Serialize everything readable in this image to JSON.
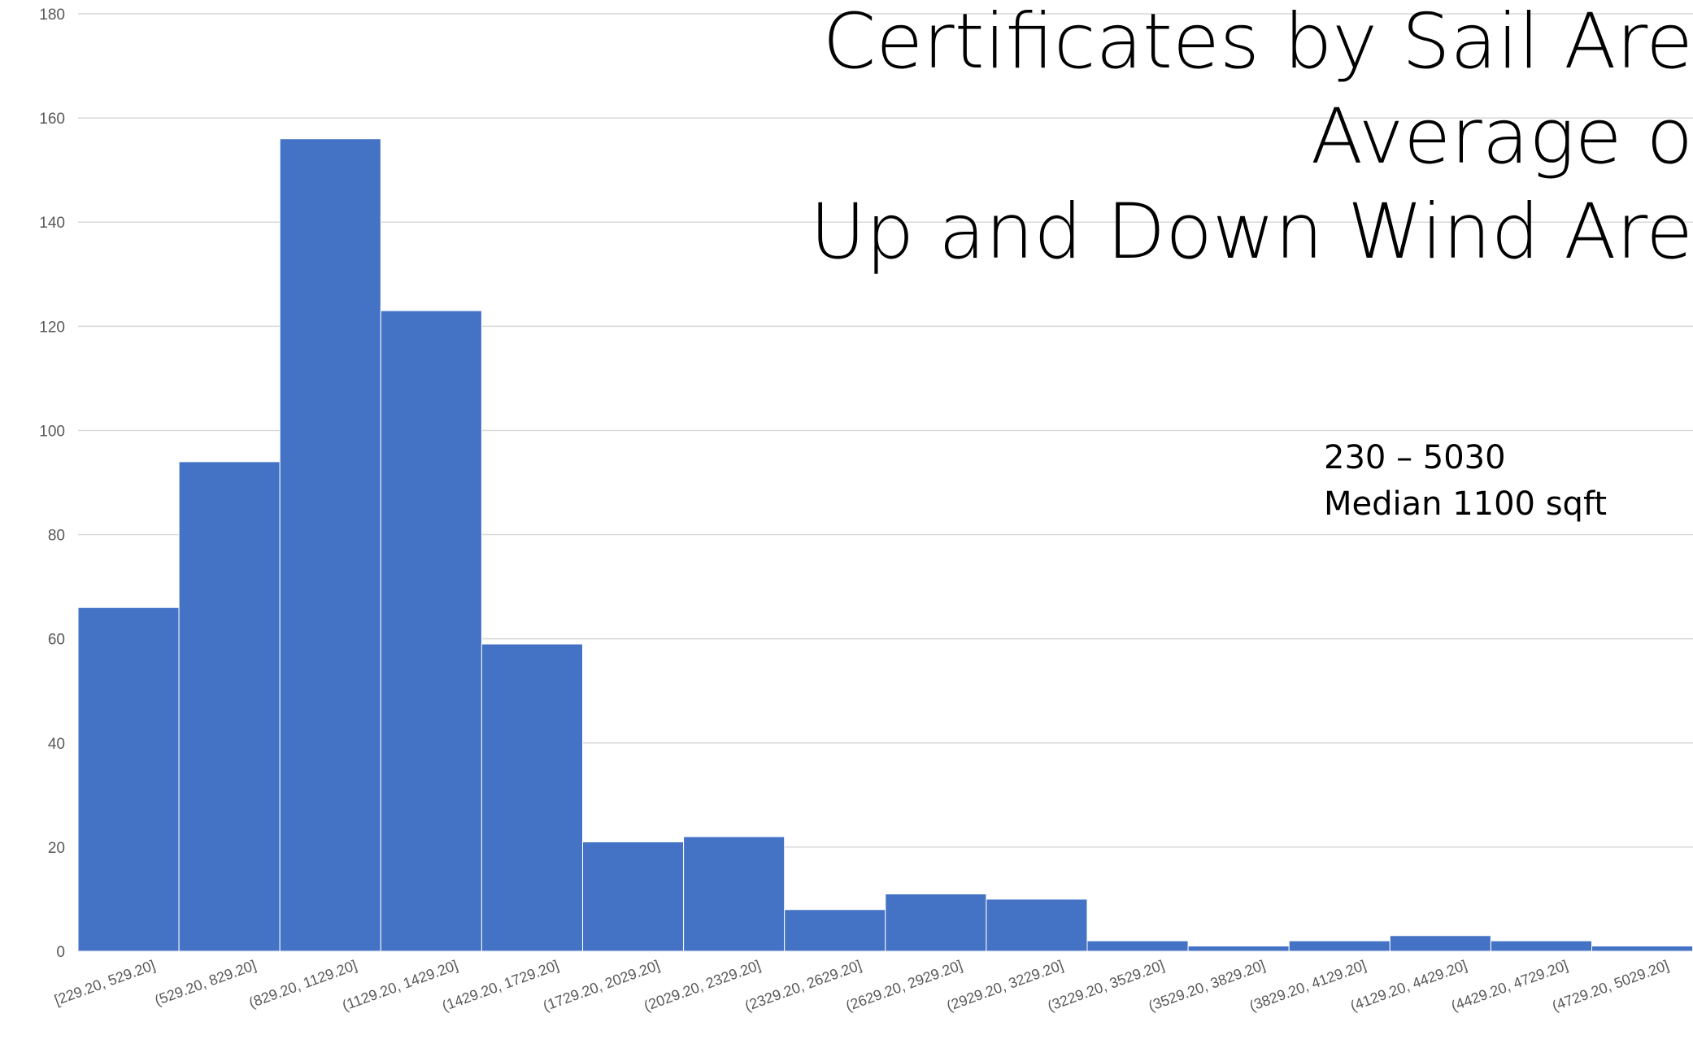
{
  "chart_data": {
    "type": "bar",
    "title_lines": [
      "Certificates by Sail Are",
      "Average o",
      "Up and Down Wind Are"
    ],
    "annotation_lines": [
      "230 – 5030",
      "Median 1100 sqft"
    ],
    "categories": [
      "[229.20, 529.20]",
      "(529.20, 829.20]",
      "(829.20, 1129.20]",
      "(1129.20, 1429.20]",
      "(1429.20, 1729.20]",
      "(1729.20, 2029.20]",
      "(2029.20, 2329.20]",
      "(2329.20, 2629.20]",
      "(2629.20, 2929.20]",
      "(2929.20, 3229.20]",
      "(3229.20, 3529.20]",
      "(3529.20, 3829.20]",
      "(3829.20, 4129.20]",
      "(4129.20, 4429.20]",
      "(4429.20, 4729.20]",
      "(4729.20, 5029.20]"
    ],
    "values": [
      66,
      94,
      156,
      123,
      59,
      21,
      22,
      8,
      11,
      10,
      2,
      1,
      2,
      3,
      2,
      1
    ],
    "ylim": [
      0,
      180
    ],
    "yticks": [
      0,
      20,
      40,
      60,
      80,
      100,
      120,
      140,
      160,
      180
    ],
    "grid": true,
    "colors": {
      "bar": "#4472C4",
      "bar_edge": "#ffffff",
      "grid": "#D9D9D9",
      "axis_text": "#595959"
    }
  }
}
